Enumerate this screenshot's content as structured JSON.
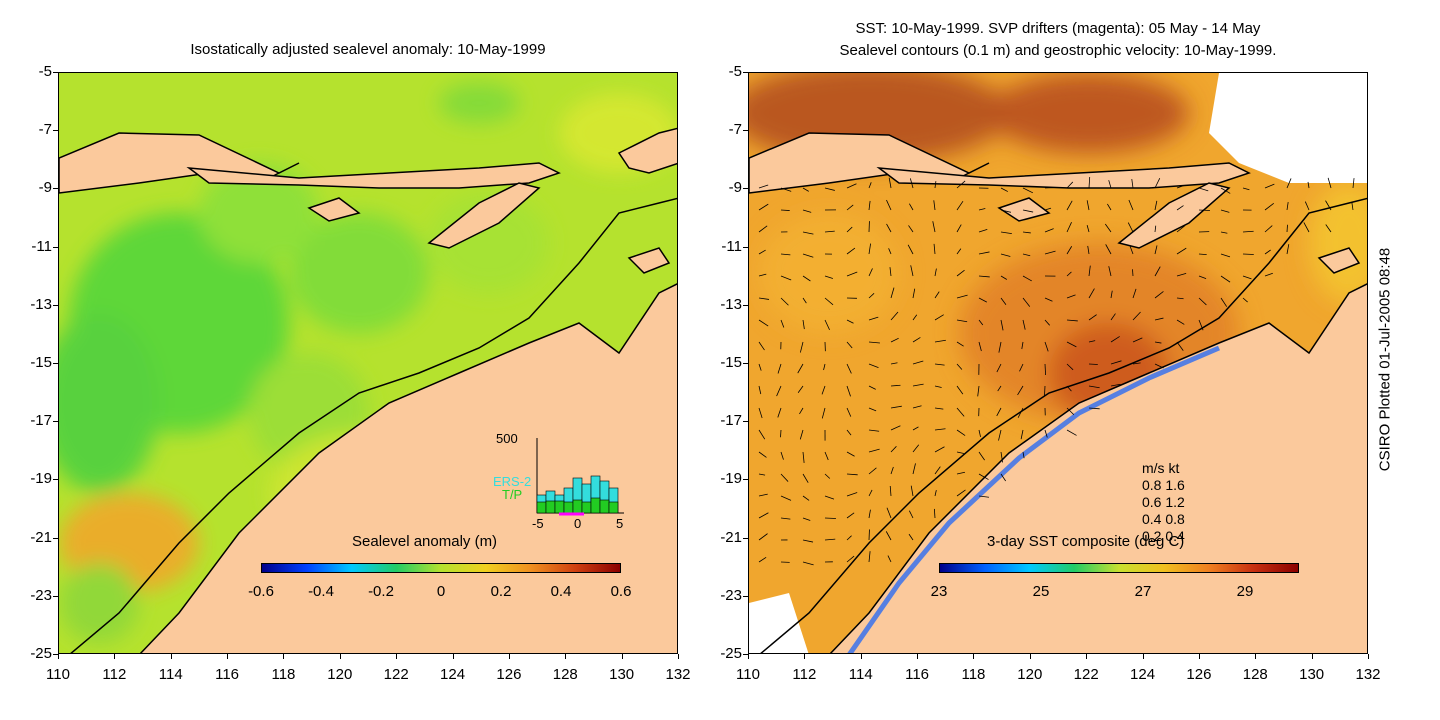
{
  "left_panel": {
    "title": "Isostatically adjusted sealevel anomaly: 10-May-1999",
    "colorbar": {
      "title": "Sealevel anomaly (m)",
      "ticks": [
        "-0.6",
        "-0.4",
        "-0.2",
        "0",
        "0.2",
        "0.4",
        "0.6"
      ]
    },
    "inset_histogram": {
      "ymax_label": "500",
      "series": [
        "ERS-2",
        "T/P"
      ],
      "series_colors": [
        "#33dddd",
        "#22cc22"
      ],
      "x_ticks": [
        "-5",
        "0",
        "5"
      ]
    }
  },
  "right_panel": {
    "title_line1": "SST: 10-May-1999. SVP drifters (magenta): 05 May - 14 May",
    "title_line2": "Sealevel contours (0.1 m) and geostrophic velocity: 10-May-1999.",
    "colorbar": {
      "title": "3-day SST composite (deg C)",
      "ticks": [
        "23",
        "25",
        "27",
        "29"
      ]
    },
    "velocity_legend": {
      "header": "m/s  kt",
      "rows": [
        "0.8  1.6",
        "0.6  1.2",
        "0.4  0.8",
        "0.2  0.4"
      ]
    }
  },
  "axes": {
    "y_ticks": [
      "-5",
      "-7",
      "-9",
      "-11",
      "-13",
      "-15",
      "-17",
      "-19",
      "-21",
      "-23",
      "-25"
    ],
    "x_ticks": [
      "110",
      "112",
      "114",
      "116",
      "118",
      "120",
      "122",
      "124",
      "126",
      "128",
      "130",
      "132"
    ]
  },
  "footer": {
    "plot_stamp": "CSIRO Plotted 01-Jul-2005 08:48"
  },
  "colors": {
    "land": "#fbc99c",
    "sla_base": "#b8e633",
    "sst_base": "#f0a030"
  }
}
